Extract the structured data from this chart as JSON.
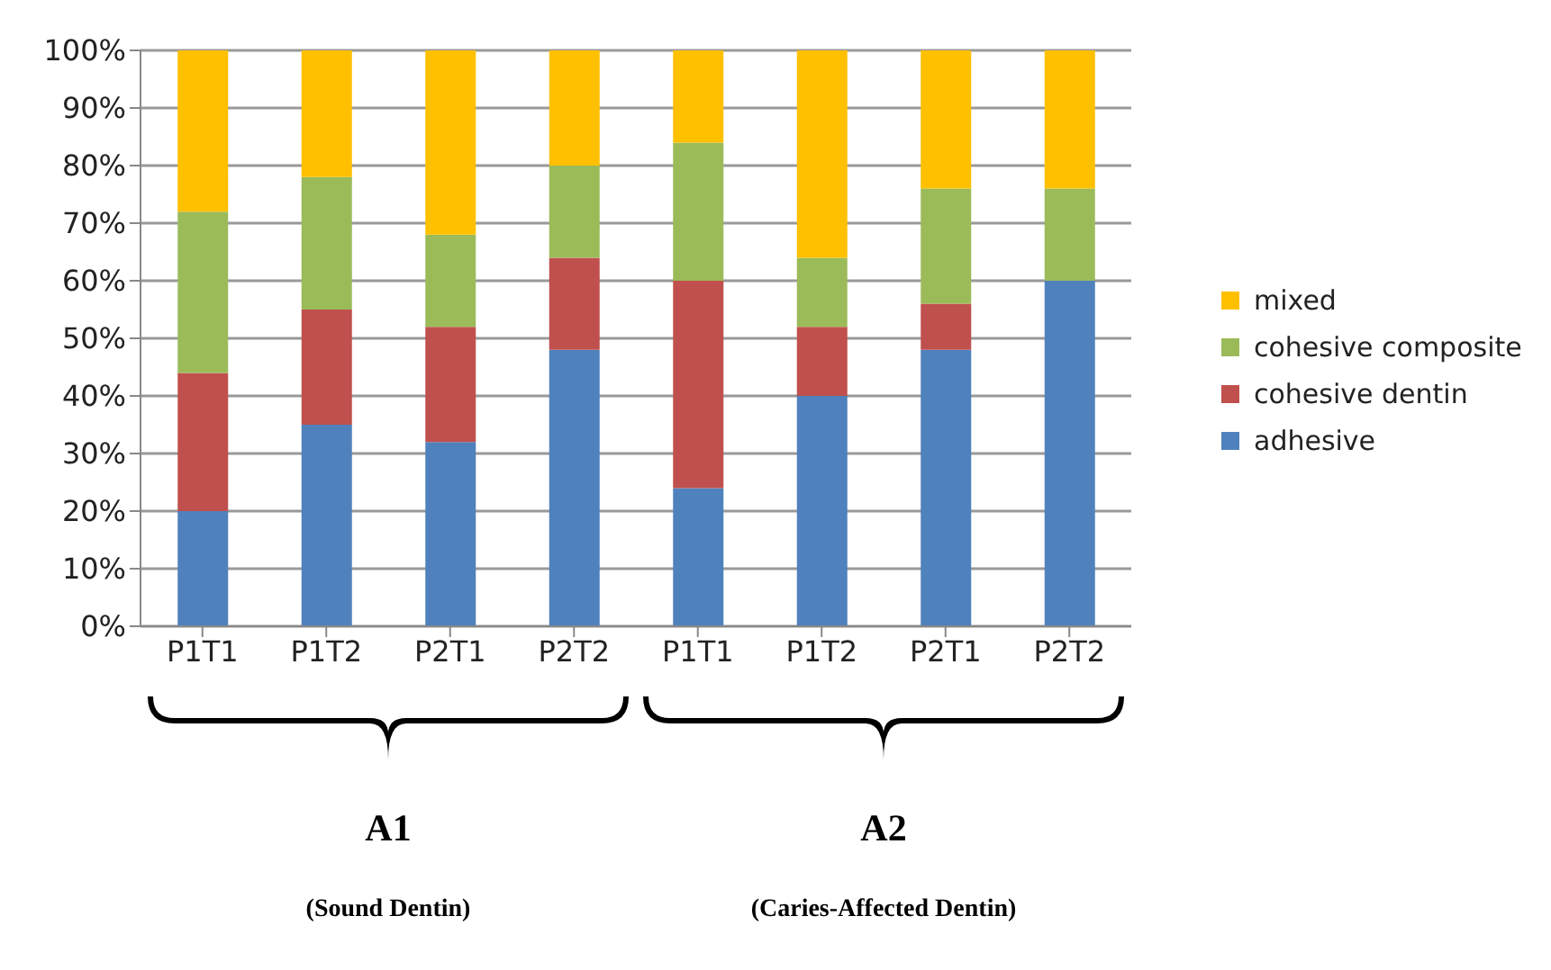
{
  "chart_data": {
    "type": "bar",
    "stacked": true,
    "categories": [
      "P1T1",
      "P1T2",
      "P2T1",
      "P2T2",
      "P1T1",
      "P1T2",
      "P2T1",
      "P2T2"
    ],
    "series": [
      {
        "name": "adhesive",
        "color": "#4f81bd",
        "values": [
          20,
          35,
          32,
          48,
          24,
          40,
          48,
          60
        ]
      },
      {
        "name": "cohesive dentin",
        "color": "#c0504d",
        "values": [
          24,
          20,
          20,
          16,
          36,
          12,
          8,
          0
        ]
      },
      {
        "name": "cohesive composite",
        "color": "#9bbb59",
        "values": [
          28,
          23,
          16,
          16,
          24,
          12,
          20,
          16
        ]
      },
      {
        "name": "mixed",
        "color": "#ffc000",
        "values": [
          28,
          22,
          32,
          20,
          16,
          36,
          24,
          24
        ]
      }
    ],
    "ylim": [
      0,
      100
    ],
    "yticks": [
      {
        "value": 0,
        "label": "0%"
      },
      {
        "value": 10,
        "label": "10%"
      },
      {
        "value": 20,
        "label": "20%"
      },
      {
        "value": 30,
        "label": "30%"
      },
      {
        "value": 40,
        "label": "40%"
      },
      {
        "value": 50,
        "label": "50%"
      },
      {
        "value": 60,
        "label": "60%"
      },
      {
        "value": 70,
        "label": "70%"
      },
      {
        "value": 80,
        "label": "80%"
      },
      {
        "value": 90,
        "label": "90%"
      },
      {
        "value": 100,
        "label": "100%"
      }
    ],
    "grid": "y",
    "legend": "right",
    "annotations": [
      "A1",
      "(Sound Dentin)",
      "A2",
      "(Caries-Affected Dentin)"
    ]
  }
}
